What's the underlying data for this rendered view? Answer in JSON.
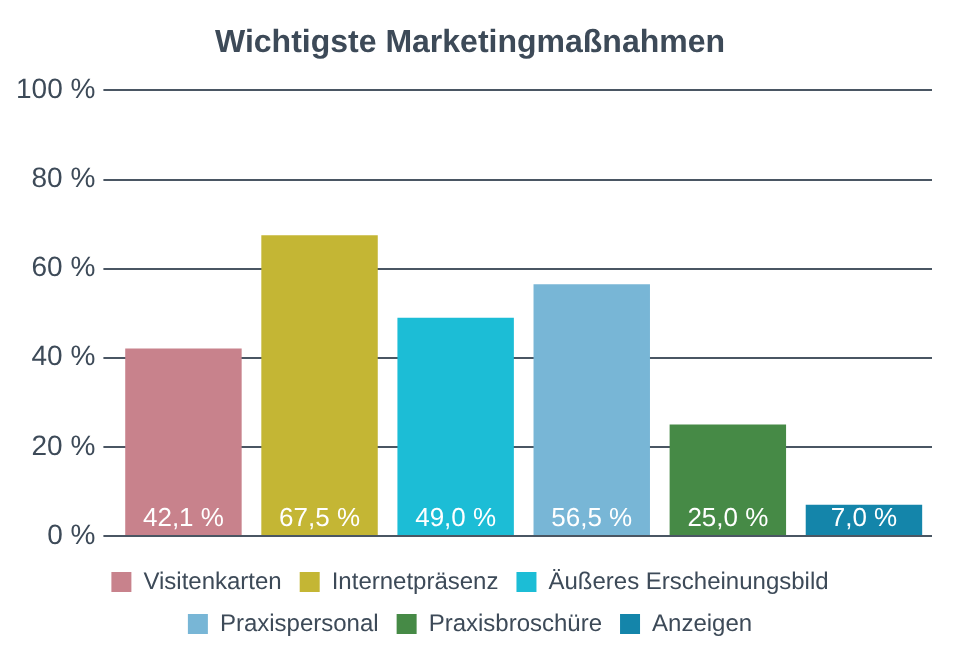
{
  "chart_data": {
    "type": "bar",
    "title": "Wichtigste Marketingmaßnahmen",
    "categories": [
      null,
      null,
      null,
      null,
      null,
      null
    ],
    "series": [
      {
        "name": "Visitenkarten",
        "color": "#c8828c",
        "values": [
          42.1,
          null,
          null,
          null,
          null,
          null
        ],
        "value_labels": [
          "42,1 %",
          null,
          null,
          null,
          null,
          null
        ]
      },
      {
        "name": "Internetpräsenz",
        "color": "#c4b634",
        "values": [
          null,
          67.5,
          null,
          null,
          null,
          null
        ],
        "value_labels": [
          null,
          "67,5 %",
          null,
          null,
          null,
          null
        ]
      },
      {
        "name": "Äußeres Erscheinungsbild",
        "color": "#1cbdd6",
        "values": [
          null,
          null,
          49.0,
          null,
          null,
          null
        ],
        "value_labels": [
          null,
          null,
          "49,0 %",
          null,
          null,
          null
        ]
      },
      {
        "name": "Praxispersonal",
        "color": "#78b6d6",
        "values": [
          null,
          null,
          null,
          56.5,
          null,
          null
        ],
        "value_labels": [
          null,
          null,
          null,
          "56,5 %",
          null,
          null
        ]
      },
      {
        "name": "Praxisbroschüre",
        "color": "#468a46",
        "values": [
          null,
          null,
          null,
          null,
          25.0,
          null
        ],
        "value_labels": [
          null,
          null,
          null,
          null,
          "25,0 %",
          null
        ]
      },
      {
        "name": "Anzeigen",
        "color": "#1485aa",
        "values": [
          null,
          null,
          null,
          null,
          null,
          7.0
        ],
        "value_labels": [
          null,
          null,
          null,
          null,
          null,
          "7,0 %"
        ]
      }
    ],
    "ylim": [
      0,
      100
    ],
    "yticks": [
      {
        "value": 0,
        "label": "0 %"
      },
      {
        "value": 20,
        "label": "20 %"
      },
      {
        "value": 40,
        "label": "40 %"
      },
      {
        "value": 60,
        "label": "60 %"
      },
      {
        "value": 80,
        "label": "80 %"
      },
      {
        "value": 100,
        "label": "100 %"
      }
    ],
    "grid": "y",
    "legend": "bottom",
    "tick_labels": "y"
  }
}
